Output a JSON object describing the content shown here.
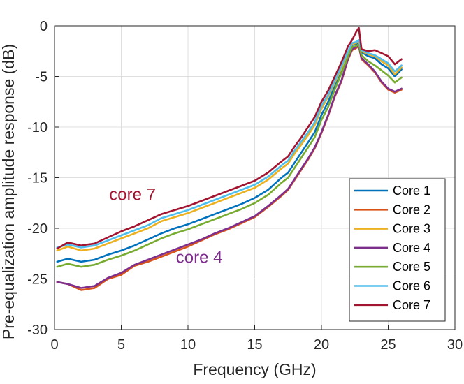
{
  "chart_data": {
    "type": "line",
    "title": "",
    "xlabel": "Frequency (GHz)",
    "ylabel": "Pre-equalization amplitude response (dB)",
    "xlim": [
      0,
      30
    ],
    "ylim": [
      -30,
      0
    ],
    "xticks": [
      0,
      5,
      10,
      15,
      20,
      25,
      30
    ],
    "yticks": [
      0,
      -5,
      -10,
      -15,
      -20,
      -25,
      -30
    ],
    "xtick_labels": [
      "0",
      "5",
      "10",
      "15",
      "20",
      "25",
      "30"
    ],
    "ytick_labels": [
      "0",
      "-5",
      "-10",
      "-15",
      "-20",
      "-25",
      "-30"
    ],
    "grid": true,
    "legend_position": "bottom-right",
    "x": [
      0.2,
      1,
      2,
      3,
      4,
      5,
      6,
      7,
      8,
      9,
      10,
      11,
      12,
      13,
      14,
      15,
      16,
      17,
      17.5,
      18,
      18.5,
      19,
      19.5,
      20,
      20.5,
      21,
      21.5,
      22,
      22.3,
      22.6,
      22.8,
      23,
      23.5,
      24,
      24.5,
      25,
      25.5,
      26
    ],
    "series": [
      {
        "name": "Core 1",
        "color": "#0072BD",
        "values": [
          -23.3,
          -23.0,
          -23.3,
          -23.1,
          -22.6,
          -22.2,
          -21.7,
          -21.1,
          -20.5,
          -20.0,
          -19.6,
          -19.1,
          -18.6,
          -18.1,
          -17.6,
          -17.0,
          -16.2,
          -15.0,
          -14.5,
          -13.5,
          -12.5,
          -11.5,
          -10.5,
          -8.8,
          -7.5,
          -6.0,
          -4.4,
          -2.8,
          -1.9,
          -1.8,
          -1.6,
          -2.6,
          -3.0,
          -3.2,
          -3.8,
          -4.2,
          -5.0,
          -4.3
        ]
      },
      {
        "name": "Core 2",
        "color": "#D95319",
        "values": [
          -25.3,
          -25.5,
          -26.1,
          -25.9,
          -25.0,
          -24.6,
          -23.7,
          -23.3,
          -22.8,
          -22.3,
          -21.8,
          -21.2,
          -20.6,
          -20.1,
          -19.5,
          -18.9,
          -17.9,
          -16.8,
          -16.2,
          -15.2,
          -14.2,
          -13.2,
          -12.1,
          -10.6,
          -8.9,
          -7.0,
          -5.5,
          -3.3,
          -2.4,
          -2.2,
          -2.0,
          -3.3,
          -3.9,
          -4.6,
          -5.6,
          -6.3,
          -6.6,
          -6.3
        ]
      },
      {
        "name": "Core 3",
        "color": "#EDB120",
        "values": [
          -22.2,
          -21.8,
          -22.2,
          -22.0,
          -21.5,
          -21.0,
          -20.5,
          -20.0,
          -19.3,
          -18.9,
          -18.5,
          -18.0,
          -17.5,
          -17.0,
          -16.5,
          -16.0,
          -15.2,
          -14.1,
          -13.6,
          -12.6,
          -11.7,
          -10.8,
          -9.8,
          -8.2,
          -7.0,
          -5.6,
          -4.2,
          -2.6,
          -1.8,
          -1.7,
          -1.5,
          -2.5,
          -2.8,
          -3.0,
          -3.5,
          -3.9,
          -4.8,
          -4.1
        ]
      },
      {
        "name": "Core 4",
        "color": "#7E2F8E",
        "values": [
          -25.3,
          -25.5,
          -25.9,
          -25.7,
          -24.9,
          -24.4,
          -23.6,
          -23.1,
          -22.6,
          -22.1,
          -21.6,
          -21.1,
          -20.5,
          -20.0,
          -19.4,
          -18.8,
          -17.8,
          -16.7,
          -16.1,
          -15.1,
          -14.1,
          -13.1,
          -12.0,
          -10.5,
          -8.8,
          -6.9,
          -5.4,
          -3.2,
          -2.3,
          -2.1,
          -1.9,
          -3.2,
          -3.8,
          -4.5,
          -5.5,
          -6.2,
          -6.5,
          -6.2
        ]
      },
      {
        "name": "Core 5",
        "color": "#77AC30",
        "values": [
          -23.8,
          -23.5,
          -23.8,
          -23.6,
          -23.1,
          -22.7,
          -22.2,
          -21.6,
          -21.0,
          -20.5,
          -20.1,
          -19.6,
          -19.1,
          -18.6,
          -18.1,
          -17.5,
          -16.7,
          -15.5,
          -15.0,
          -14.0,
          -13.0,
          -12.0,
          -11.0,
          -9.3,
          -8.0,
          -6.3,
          -4.7,
          -3.0,
          -2.1,
          -2.0,
          -1.8,
          -2.9,
          -3.5,
          -3.9,
          -4.4,
          -4.9,
          -5.6,
          -5.1
        ]
      },
      {
        "name": "Core 6",
        "color": "#4DBEEE",
        "values": [
          -21.9,
          -21.6,
          -21.9,
          -21.7,
          -21.2,
          -20.7,
          -20.2,
          -19.7,
          -19.0,
          -18.6,
          -18.2,
          -17.7,
          -17.2,
          -16.7,
          -16.2,
          -15.7,
          -14.9,
          -13.8,
          -13.3,
          -12.3,
          -11.4,
          -10.5,
          -9.5,
          -7.9,
          -6.8,
          -5.4,
          -4.0,
          -2.5,
          -1.7,
          -1.6,
          -1.4,
          -2.4,
          -2.7,
          -2.9,
          -3.3,
          -3.7,
          -4.5,
          -3.9
        ]
      },
      {
        "name": "Core 7",
        "color": "#A2142F",
        "values": [
          -22.0,
          -21.4,
          -21.7,
          -21.5,
          -20.9,
          -20.3,
          -19.8,
          -19.2,
          -18.6,
          -18.2,
          -17.8,
          -17.3,
          -16.8,
          -16.3,
          -15.8,
          -15.3,
          -14.5,
          -13.4,
          -12.9,
          -11.9,
          -11.0,
          -10.0,
          -9.0,
          -7.5,
          -6.4,
          -5.0,
          -3.6,
          -2.0,
          -1.4,
          -0.6,
          -0.2,
          -2.3,
          -2.5,
          -2.4,
          -2.7,
          -3.0,
          -3.8,
          -3.3
        ]
      }
    ],
    "annotations": [
      {
        "text": "core 7",
        "x": 4.1,
        "y": -17.2,
        "color": "#A2142F"
      },
      {
        "text": "core 4",
        "x": 9.1,
        "y": -23.4,
        "color": "#7E2F8E"
      }
    ]
  }
}
